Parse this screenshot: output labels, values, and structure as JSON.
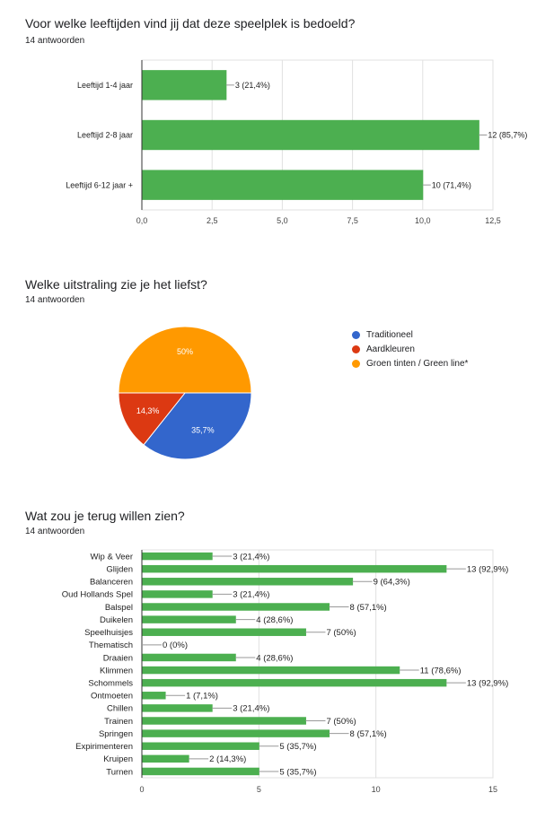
{
  "charts": [
    {
      "title": "Voor welke leeftijden vind jij dat deze speelplek is bedoeld?",
      "subtitle": "14 antwoorden"
    },
    {
      "title": "Welke uitstraling zie je het liefst?",
      "subtitle": "14 antwoorden"
    },
    {
      "title": "Wat zou je terug willen zien?",
      "subtitle": "14 antwoorden"
    }
  ],
  "chart_data": [
    {
      "type": "bar",
      "orientation": "horizontal",
      "title": "Voor welke leeftijden vind jij dat deze speelplek is bedoeld?",
      "categories": [
        "Leeftijd 1-4 jaar",
        "Leeftijd 2-8 jaar",
        "Leeftijd 6-12 jaar +"
      ],
      "values": [
        3,
        12,
        10
      ],
      "data_labels": [
        "3 (21,4%)",
        "12 (85,7%)",
        "10 (71,4%)"
      ],
      "xlim": [
        0,
        12.5
      ],
      "xticks": [
        "0,0",
        "2,5",
        "5,0",
        "7,5",
        "10,0",
        "12,5"
      ],
      "color": "#4caf50",
      "grid": true
    },
    {
      "type": "pie",
      "title": "Welke uitstraling zie je het liefst?",
      "categories": [
        "Traditioneel",
        "Aardkleuren",
        "Groen tinten / Green line*"
      ],
      "values": [
        35.7,
        14.3,
        50
      ],
      "data_labels": [
        "35,7%",
        "14,3%",
        "50%"
      ],
      "colors": [
        "#3366cc",
        "#dc3912",
        "#ff9900"
      ],
      "legend": "right"
    },
    {
      "type": "bar",
      "orientation": "horizontal",
      "title": "Wat zou je terug willen zien?",
      "categories": [
        "Wip & Veer",
        "Glijden",
        "Balanceren",
        "Oud Hollands Spel",
        "Balspel",
        "Duikelen",
        "Speelhuisjes",
        "Thematisch",
        "Draaien",
        "Klimmen",
        "Schommels",
        "Ontmoeten",
        "Chillen",
        "Trainen",
        "Springen",
        "Expirimenteren",
        "Kruipen",
        "Turnen"
      ],
      "values": [
        3,
        13,
        9,
        3,
        8,
        4,
        7,
        0,
        4,
        11,
        13,
        1,
        3,
        7,
        8,
        5,
        2,
        5
      ],
      "data_labels": [
        "3 (21,4%)",
        "13 (92,9%)",
        "9 (64,3%)",
        "3 (21,4%)",
        "8 (57,1%)",
        "4 (28,6%)",
        "7 (50%)",
        "0 (0%)",
        "4 (28,6%)",
        "11 (78,6%)",
        "13 (92,9%)",
        "1 (7,1%)",
        "3 (21,4%)",
        "7 (50%)",
        "8 (57,1%)",
        "5 (35,7%)",
        "2 (14,3%)",
        "5 (35,7%)"
      ],
      "xlim": [
        0,
        15
      ],
      "xticks": [
        "0",
        "5",
        "10",
        "15"
      ],
      "color": "#4caf50",
      "grid": true
    }
  ]
}
